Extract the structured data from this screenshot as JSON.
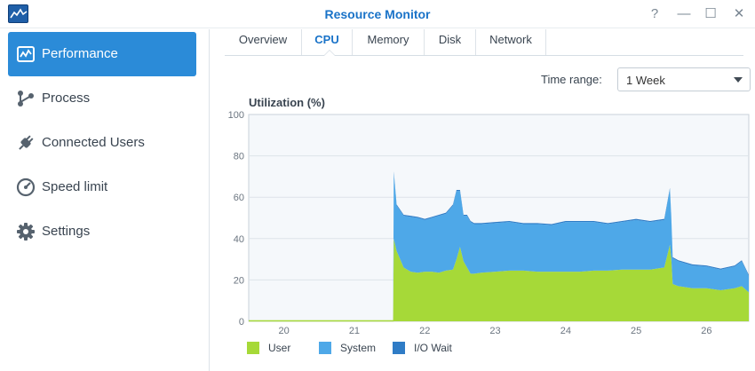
{
  "window": {
    "title": "Resource Monitor",
    "buttons": {
      "help": "?",
      "minimize": "—",
      "maximize": "☐",
      "close": "✕"
    }
  },
  "sidebar": {
    "items": [
      {
        "label": "Performance",
        "icon": "performance-icon",
        "active": true
      },
      {
        "label": "Process",
        "icon": "process-icon",
        "active": false
      },
      {
        "label": "Connected Users",
        "icon": "plug-icon",
        "active": false
      },
      {
        "label": "Speed limit",
        "icon": "speedometer-icon",
        "active": false
      },
      {
        "label": "Settings",
        "icon": "gear-icon",
        "active": false
      }
    ]
  },
  "tabs": [
    {
      "label": "Overview",
      "active": false
    },
    {
      "label": "CPU",
      "active": true
    },
    {
      "label": "Memory",
      "active": false
    },
    {
      "label": "Disk",
      "active": false
    },
    {
      "label": "Network",
      "active": false
    }
  ],
  "time_range": {
    "label": "Time range:",
    "value": "1 Week"
  },
  "colors": {
    "user": "#a6d938",
    "system": "#4ea8e8",
    "io_wait": "#2f7cc6",
    "accent": "#2b8bd8"
  },
  "chart_data": {
    "type": "area",
    "title": "Utilization (%)",
    "xlabel": "",
    "ylabel": "",
    "ylim": [
      0,
      100
    ],
    "yticks": [
      "0",
      "20",
      "40",
      "60",
      "80",
      "100"
    ],
    "xticks": [
      "20",
      "21",
      "22",
      "23",
      "24",
      "25",
      "26"
    ],
    "xlim": [
      19.5,
      26.6
    ],
    "grid": true,
    "legend": "bottom-left",
    "stacked": true,
    "x": [
      19.5,
      20.0,
      21.0,
      21.55,
      21.56,
      21.6,
      21.7,
      21.8,
      21.9,
      22.0,
      22.1,
      22.2,
      22.3,
      22.4,
      22.45,
      22.5,
      22.55,
      22.6,
      22.65,
      22.7,
      22.8,
      23.0,
      23.2,
      23.4,
      23.6,
      23.8,
      24.0,
      24.2,
      24.4,
      24.6,
      24.8,
      25.0,
      25.2,
      25.4,
      25.48,
      25.5,
      25.52,
      25.6,
      25.8,
      26.0,
      26.2,
      26.4,
      26.5,
      26.6
    ],
    "series": [
      {
        "name": "User",
        "values": [
          0,
          0,
          0,
          0,
          40,
          34,
          26,
          24,
          23.5,
          24,
          24,
          23.5,
          24.5,
          25,
          30,
          36,
          29,
          26,
          23,
          23,
          23.5,
          24,
          24.5,
          24.5,
          24,
          24,
          24,
          24,
          24.5,
          24.5,
          25,
          25,
          25,
          26,
          37,
          30,
          18,
          17,
          16,
          16,
          15,
          16,
          17,
          14
        ]
      },
      {
        "name": "System",
        "values": [
          0,
          0,
          0,
          0,
          32,
          22,
          25,
          26.5,
          26.5,
          25,
          26,
          27.5,
          27.5,
          31,
          33,
          27,
          22,
          25,
          25,
          24,
          23.5,
          23.5,
          23.5,
          22.5,
          23,
          22.5,
          24,
          24,
          23.5,
          22.5,
          23,
          24,
          23,
          23,
          27,
          20,
          12.5,
          12,
          11,
          10.5,
          10,
          10.5,
          12,
          8
        ]
      },
      {
        "name": "I/O Wait",
        "values": [
          0,
          0,
          0,
          0,
          0.5,
          0.5,
          0.5,
          0.5,
          0.5,
          0.5,
          0.5,
          0.5,
          0.5,
          0.5,
          0.5,
          0.5,
          0.5,
          0.5,
          0.5,
          0.5,
          0.5,
          0.5,
          0.5,
          0.5,
          0.5,
          0.5,
          0.5,
          0.5,
          0.5,
          0.5,
          0.5,
          0.5,
          0.5,
          0.5,
          0.5,
          0.5,
          0.5,
          0.5,
          0.5,
          0.5,
          0.5,
          0.5,
          0.5,
          0.5
        ]
      }
    ]
  }
}
